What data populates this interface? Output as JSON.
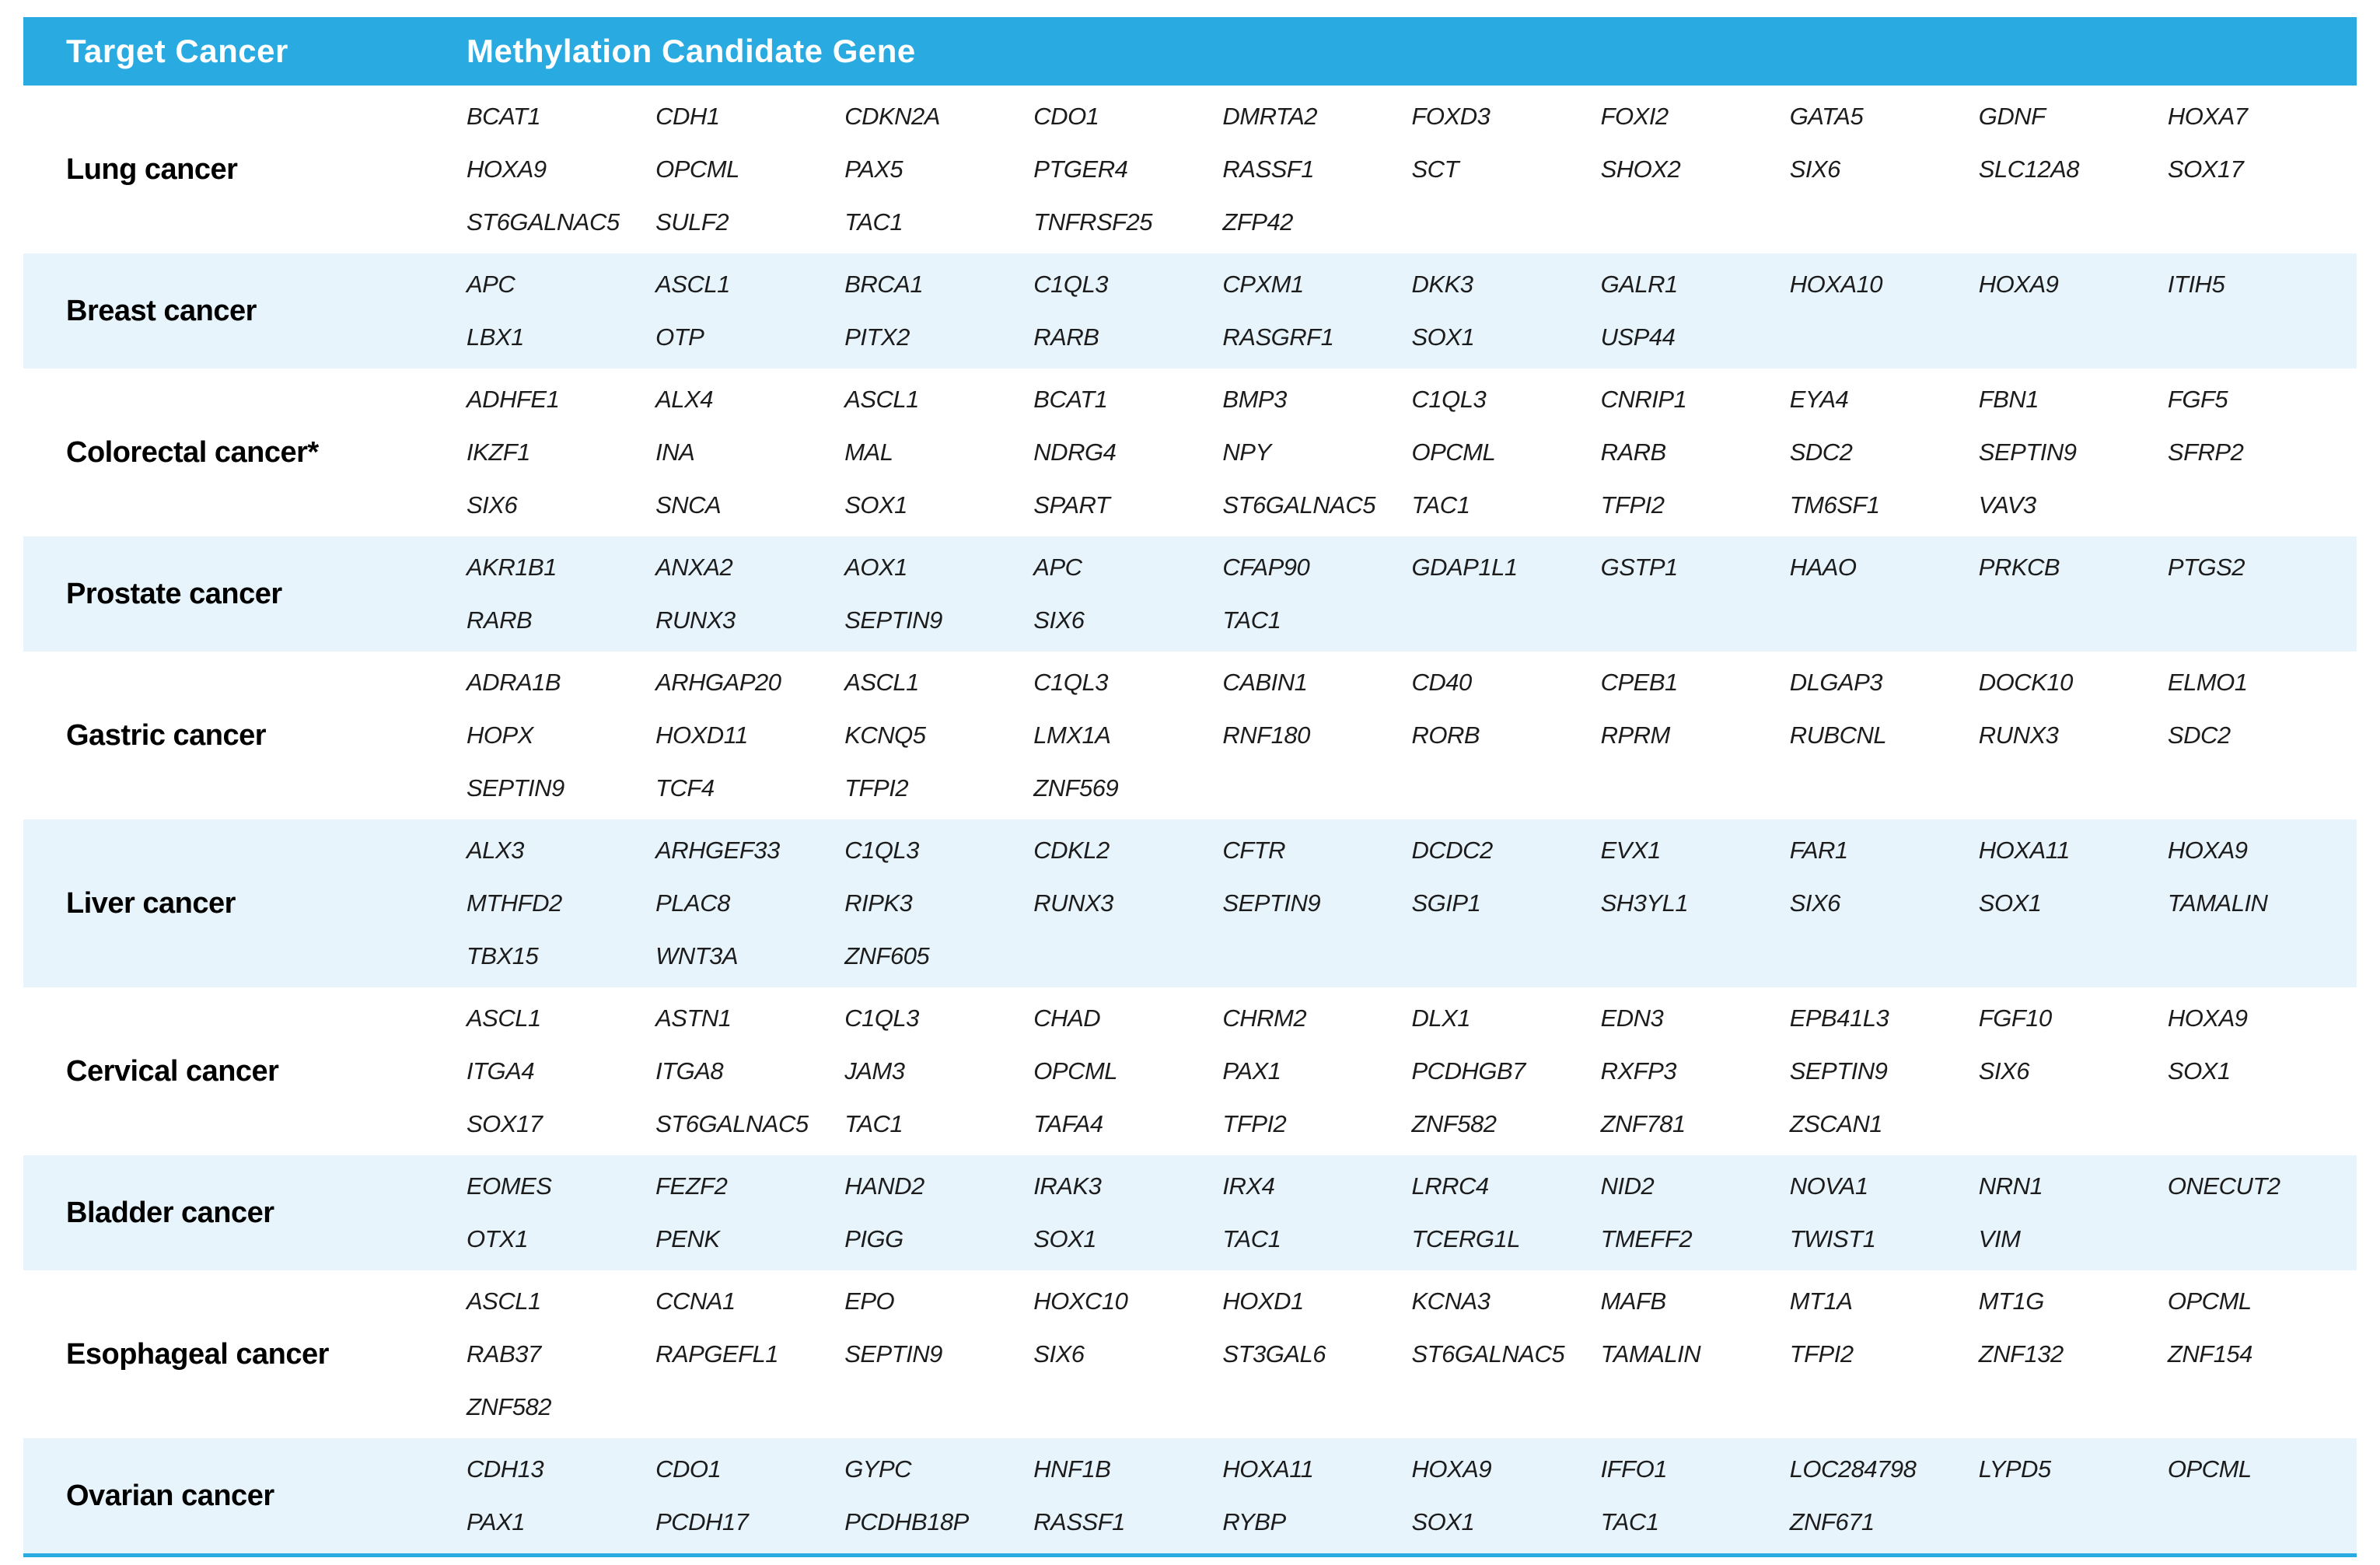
{
  "colors": {
    "header_bg": "#29ABE2",
    "row_alt_bg": "#E7F4FC",
    "gene_text": "#1c1c1c"
  },
  "table": {
    "headers": [
      "Target Cancer",
      "Methylation Candidate Gene"
    ],
    "rows": [
      {
        "cancer": "Lung cancer",
        "genes": [
          "BCAT1",
          "CDH1",
          "CDKN2A",
          "CDO1",
          "DMRTA2",
          "FOXD3",
          "FOXI2",
          "GATA5",
          "GDNF",
          "HOXA7",
          "HOXA9",
          "OPCML",
          "PAX5",
          "PTGER4",
          "RASSF1",
          "SCT",
          "SHOX2",
          "SIX6",
          "SLC12A8",
          "SOX17",
          "ST6GALNAC5",
          "SULF2",
          "TAC1",
          "TNFRSF25",
          "ZFP42"
        ]
      },
      {
        "cancer": "Breast cancer",
        "genes": [
          "APC",
          "ASCL1",
          "BRCA1",
          "C1QL3",
          "CPXM1",
          "DKK3",
          "GALR1",
          "HOXA10",
          "HOXA9",
          "ITIH5",
          "LBX1",
          "OTP",
          "PITX2",
          "RARB",
          "RASGRF1",
          "SOX1",
          "USP44"
        ]
      },
      {
        "cancer": "Colorectal cancer*",
        "genes": [
          "ADHFE1",
          "ALX4",
          "ASCL1",
          "BCAT1",
          "BMP3",
          "C1QL3",
          "CNRIP1",
          "EYA4",
          "FBN1",
          "FGF5",
          "IKZF1",
          "INA",
          "MAL",
          "NDRG4",
          "NPY",
          "OPCML",
          "RARB",
          "SDC2",
          "SEPTIN9",
          "SFRP2",
          "SIX6",
          "SNCA",
          "SOX1",
          "SPART",
          "ST6GALNAC5",
          "TAC1",
          "TFPI2",
          "TM6SF1",
          "VAV3"
        ]
      },
      {
        "cancer": "Prostate cancer",
        "genes": [
          "AKR1B1",
          "ANXA2",
          "AOX1",
          "APC",
          "CFAP90",
          "GDAP1L1",
          "GSTP1",
          "HAAO",
          "PRKCB",
          "PTGS2",
          "RARB",
          "RUNX3",
          "SEPTIN9",
          "SIX6",
          "TAC1"
        ]
      },
      {
        "cancer": "Gastric cancer",
        "genes": [
          "ADRA1B",
          "ARHGAP20",
          "ASCL1",
          "C1QL3",
          "CABIN1",
          "CD40",
          "CPEB1",
          "DLGAP3",
          "DOCK10",
          "ELMO1",
          "HOPX",
          "HOXD11",
          "KCNQ5",
          "LMX1A",
          "RNF180",
          "RORB",
          "RPRM",
          "RUBCNL",
          "RUNX3",
          "SDC2",
          "SEPTIN9",
          "TCF4",
          "TFPI2",
          "ZNF569"
        ]
      },
      {
        "cancer": "Liver cancer",
        "genes": [
          "ALX3",
          "ARHGEF33",
          "C1QL3",
          "CDKL2",
          "CFTR",
          "DCDC2",
          "EVX1",
          "FAR1",
          "HOXA11",
          "HOXA9",
          "MTHFD2",
          "PLAC8",
          "RIPK3",
          "RUNX3",
          "SEPTIN9",
          "SGIP1",
          "SH3YL1",
          "SIX6",
          "SOX1",
          "TAMALIN",
          "TBX15",
          "WNT3A",
          "ZNF605"
        ]
      },
      {
        "cancer": "Cervical cancer",
        "genes": [
          "ASCL1",
          "ASTN1",
          "C1QL3",
          "CHAD",
          "CHRM2",
          "DLX1",
          "EDN3",
          "EPB41L3",
          "FGF10",
          "HOXA9",
          "ITGA4",
          "ITGA8",
          "JAM3",
          "OPCML",
          "PAX1",
          "PCDHGB7",
          "RXFP3",
          "SEPTIN9",
          "SIX6",
          "SOX1",
          "SOX17",
          "ST6GALNAC5",
          "TAC1",
          "TAFA4",
          "TFPI2",
          "ZNF582",
          "ZNF781",
          "ZSCAN1"
        ]
      },
      {
        "cancer": "Bladder cancer",
        "genes": [
          "EOMES",
          "FEZF2",
          "HAND2",
          "IRAK3",
          "IRX4",
          "LRRC4",
          "NID2",
          "NOVA1",
          "NRN1",
          "ONECUT2",
          "OTX1",
          "PENK",
          "PIGG",
          "SOX1",
          "TAC1",
          "TCERG1L",
          "TMEFF2",
          "TWIST1",
          "VIM"
        ]
      },
      {
        "cancer": "Esophageal cancer",
        "genes": [
          "ASCL1",
          "CCNA1",
          "EPO",
          "HOXC10",
          "HOXD1",
          "KCNA3",
          "MAFB",
          "MT1A",
          "MT1G",
          "OPCML",
          "RAB37",
          "RAPGEFL1",
          "SEPTIN9",
          "SIX6",
          "ST3GAL6",
          "ST6GALNAC5",
          "TAMALIN",
          "TFPI2",
          "ZNF132",
          "ZNF154",
          "ZNF582"
        ]
      },
      {
        "cancer": "Ovarian cancer",
        "genes": [
          "CDH13",
          "CDO1",
          "GYPC",
          "HNF1B",
          "HOXA11",
          "HOXA9",
          "IFFO1",
          "LOC284798",
          "LYPD5",
          "OPCML",
          "PAX1",
          "PCDH17",
          "PCDHB18P",
          "RASSF1",
          "RYBP",
          "SOX1",
          "TAC1",
          "ZNF671"
        ]
      }
    ]
  }
}
